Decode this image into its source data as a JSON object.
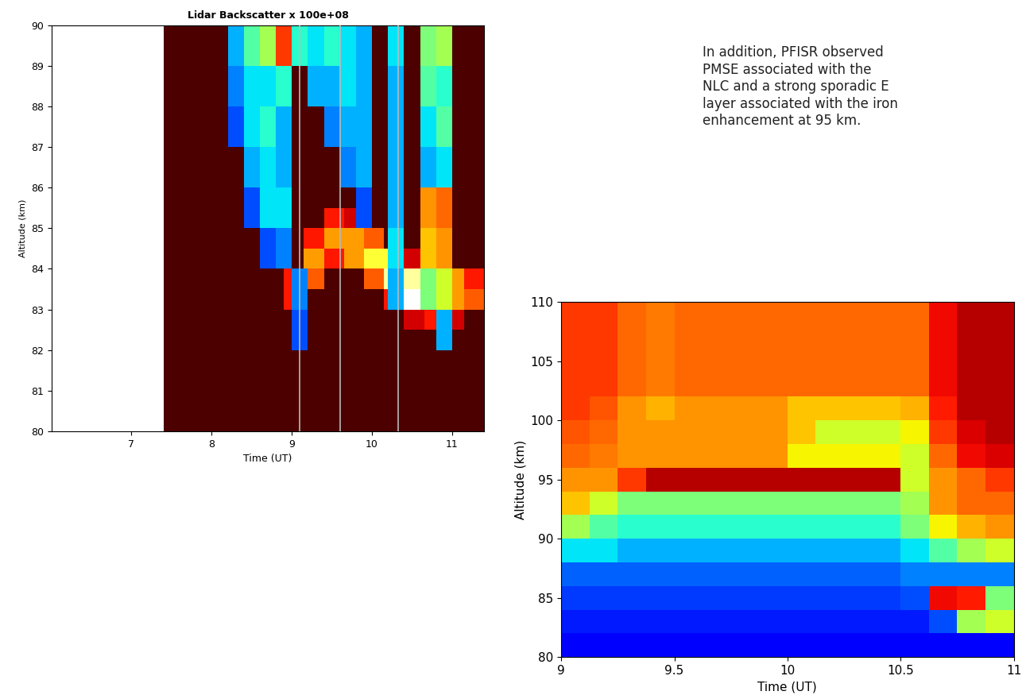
{
  "chart_data": [
    {
      "type": "heatmap",
      "title": "Lidar Backscatter x 100e+08",
      "x_label": "Time (UT)",
      "y_label": "Altitude (km)",
      "xlim": [
        6.0,
        11.4
      ],
      "ylim": [
        80,
        90
      ],
      "xticks": [
        7,
        8,
        9,
        10,
        11
      ],
      "yticks": [
        80,
        81,
        82,
        83,
        84,
        85,
        86,
        87,
        88,
        89,
        90
      ],
      "clim": [
        0,
        1
      ],
      "x_edges": [
        7.4,
        7.65,
        7.9,
        8.15,
        8.4,
        8.65,
        8.9,
        9.15,
        9.4,
        9.65,
        9.9,
        10.15,
        10.4,
        10.65,
        10.9,
        11.15,
        11.4
      ],
      "y_edges": [
        80,
        80.5,
        81,
        81.5,
        82,
        82.5,
        83,
        83.5,
        84,
        84.5,
        85,
        85.5,
        86,
        86.5,
        87,
        87.5,
        88,
        88.5,
        89,
        89.5,
        90
      ],
      "cells": [
        [
          0.1,
          0.1,
          0.1,
          0.1,
          0.1,
          0.1,
          0.1,
          0.1,
          0.1,
          0.1,
          0.1,
          0.1,
          0.1,
          0.1,
          0.1,
          0.1
        ],
        [
          0.1,
          0.1,
          0.1,
          0.1,
          0.1,
          0.1,
          0.1,
          0.1,
          0.1,
          0.1,
          0.1,
          0.1,
          0.1,
          0.1,
          0.1,
          0.1
        ],
        [
          0.1,
          0.1,
          0.1,
          0.1,
          0.1,
          0.1,
          0.1,
          0.1,
          0.1,
          0.1,
          0.1,
          0.1,
          0.1,
          0.1,
          0.1,
          0.1
        ],
        [
          0.1,
          0.1,
          0.1,
          0.1,
          0.1,
          0.1,
          0.1,
          0.1,
          0.1,
          0.1,
          0.1,
          0.1,
          0.1,
          0.1,
          0.1,
          0.1
        ],
        [
          0.1,
          0.1,
          0.1,
          0.1,
          0.1,
          0.1,
          0.1,
          0.1,
          0.1,
          0.1,
          0.1,
          0.1,
          0.1,
          0.1,
          0.1,
          0.1
        ],
        [
          0.1,
          0.1,
          0.1,
          0.1,
          0.1,
          0.1,
          0.1,
          0.1,
          0.1,
          0.1,
          0.1,
          0.1,
          0.3,
          0.4,
          0.3,
          0.1
        ],
        [
          0.1,
          0.1,
          0.1,
          0.1,
          0.1,
          0.1,
          0.4,
          0.1,
          0.1,
          0.1,
          0.1,
          0.4,
          1.0,
          0.9,
          0.6,
          0.5
        ],
        [
          0.1,
          0.1,
          0.1,
          0.1,
          0.1,
          0.1,
          0.4,
          0.5,
          0.1,
          0.1,
          0.5,
          0.9,
          0.9,
          0.8,
          0.6,
          0.4
        ],
        [
          0.1,
          0.1,
          0.1,
          0.1,
          0.1,
          0.1,
          0.1,
          0.6,
          0.4,
          0.6,
          0.8,
          0.8,
          0.3,
          0.1,
          0.1,
          0.1
        ],
        [
          0.1,
          0.1,
          0.1,
          0.1,
          0.1,
          0.1,
          0.1,
          0.4,
          0.6,
          0.6,
          0.5,
          0.1,
          0.1,
          0.1,
          0.1,
          0.1
        ],
        [
          0.1,
          0.1,
          0.1,
          0.1,
          0.1,
          0.1,
          0.1,
          0.1,
          0.4,
          0.3,
          0.1,
          0.1,
          0.1,
          0.1,
          0.1,
          0.1
        ],
        [
          0.1,
          0.1,
          0.1,
          0.1,
          0.1,
          0.1,
          0.1,
          0.1,
          0.1,
          0.1,
          0.1,
          0.1,
          0.1,
          0.1,
          0.1,
          0.1
        ],
        [
          0.1,
          0.1,
          0.1,
          0.1,
          0.1,
          0.1,
          0.1,
          0.1,
          0.1,
          0.1,
          0.1,
          0.1,
          0.1,
          0.1,
          0.1,
          0.1
        ],
        [
          0.1,
          0.1,
          0.1,
          0.1,
          0.1,
          0.1,
          0.1,
          0.1,
          0.1,
          0.1,
          0.1,
          0.1,
          0.1,
          0.1,
          0.1,
          0.1
        ],
        [
          0.1,
          0.1,
          0.1,
          0.1,
          0.1,
          0.1,
          0.1,
          0.1,
          0.1,
          0.1,
          0.1,
          0.1,
          0.1,
          0.1,
          0.1,
          0.1
        ],
        [
          0.1,
          0.1,
          0.1,
          0.1,
          0.1,
          0.1,
          0.1,
          0.1,
          0.1,
          0.1,
          0.1,
          0.1,
          0.1,
          0.1,
          0.1,
          0.1
        ],
        [
          0.1,
          0.1,
          0.1,
          0.1,
          0.1,
          0.1,
          0.1,
          0.1,
          0.1,
          0.1,
          0.1,
          0.1,
          0.1,
          0.1,
          0.1,
          0.1
        ],
        [
          0.1,
          0.1,
          0.1,
          0.1,
          0.1,
          0.1,
          0.1,
          0.1,
          0.1,
          0.1,
          0.1,
          0.1,
          0.1,
          0.1,
          0.1,
          0.1
        ],
        [
          0.1,
          0.1,
          0.1,
          0.1,
          0.1,
          0.1,
          0.1,
          0.1,
          0.1,
          0.1,
          0.1,
          0.1,
          0.1,
          0.1,
          0.1,
          0.1
        ],
        [
          0.1,
          0.1,
          0.1,
          0.1,
          0.1,
          0.1,
          0.1,
          0.1,
          0.1,
          0.1,
          0.1,
          0.1,
          0.1,
          0.1,
          0.1,
          0.1
        ]
      ],
      "overlay": {
        "x_edges": [
          8.2,
          8.4,
          8.6,
          8.8,
          9.0,
          9.2,
          9.4,
          9.6,
          9.8,
          10.0,
          10.2,
          10.4,
          10.6,
          10.8,
          11.0
        ],
        "y_edges": [
          82,
          83,
          84,
          85,
          86,
          87,
          88,
          89,
          90
        ],
        "clim": [
          0,
          1
        ],
        "cells": [
          [
            null,
            null,
            null,
            null,
            0.2,
            null,
            null,
            null,
            null,
            null,
            null,
            null,
            null,
            0.3
          ],
          [
            null,
            null,
            null,
            null,
            0.25,
            null,
            null,
            null,
            null,
            null,
            0.3,
            null,
            0.5,
            0.6
          ],
          [
            null,
            null,
            0.2,
            0.25,
            null,
            null,
            null,
            null,
            null,
            null,
            0.35,
            null,
            0.7,
            0.75
          ],
          [
            null,
            0.2,
            0.35,
            0.35,
            null,
            null,
            null,
            null,
            0.2,
            null,
            0.3,
            null,
            0.75,
            0.8
          ],
          [
            null,
            0.3,
            0.35,
            0.3,
            null,
            null,
            null,
            0.25,
            0.3,
            null,
            0.3,
            null,
            0.3,
            0.35
          ],
          [
            0.2,
            0.35,
            0.4,
            0.3,
            null,
            null,
            0.25,
            0.3,
            0.3,
            null,
            0.3,
            null,
            0.35,
            0.45
          ],
          [
            0.25,
            0.35,
            0.35,
            0.4,
            null,
            0.3,
            0.3,
            0.35,
            0.3,
            null,
            0.3,
            null,
            0.45,
            0.4
          ],
          [
            0.3,
            0.45,
            0.55,
            0.85,
            0.4,
            0.35,
            0.4,
            0.35,
            0.3,
            null,
            0.35,
            null,
            0.5,
            0.55
          ]
        ]
      },
      "marker_times": [
        9.1,
        9.6,
        10.33
      ]
    },
    {
      "type": "heatmap",
      "x_label": "Time (UT)",
      "y_label": "Altitude (km)",
      "xlim": [
        9,
        11
      ],
      "ylim": [
        80,
        110
      ],
      "xticks": [
        9,
        9.5,
        10,
        10.5,
        11
      ],
      "yticks": [
        80,
        85,
        90,
        95,
        100,
        105,
        110
      ],
      "clim": [
        0,
        1
      ],
      "annotation": "In addition, PFISR observed\nPMSE associated with the\nNLC and a strong sporadic E\nlayer associated with the iron\nenhancement at 95 km.",
      "x_edges": [
        9.0,
        9.125,
        9.25,
        9.375,
        9.5,
        9.625,
        9.75,
        9.875,
        10.0,
        10.125,
        10.25,
        10.375,
        10.5,
        10.625,
        10.75,
        10.875,
        11.0
      ],
      "y_edges": [
        80,
        82,
        84,
        86,
        88,
        90,
        92,
        94,
        96,
        98,
        100,
        102,
        104,
        106,
        108,
        110
      ],
      "cells": [
        [
          0.12,
          0.12,
          0.12,
          0.12,
          0.12,
          0.12,
          0.12,
          0.12,
          0.12,
          0.12,
          0.12,
          0.12,
          0.12,
          0.12,
          0.12,
          0.12
        ],
        [
          0.15,
          0.15,
          0.15,
          0.15,
          0.15,
          0.15,
          0.15,
          0.15,
          0.15,
          0.15,
          0.15,
          0.15,
          0.15,
          0.2,
          0.55,
          0.6
        ],
        [
          0.18,
          0.18,
          0.18,
          0.18,
          0.18,
          0.18,
          0.18,
          0.18,
          0.18,
          0.18,
          0.18,
          0.18,
          0.2,
          0.9,
          0.88,
          0.5
        ],
        [
          0.22,
          0.22,
          0.22,
          0.22,
          0.22,
          0.22,
          0.22,
          0.22,
          0.22,
          0.22,
          0.22,
          0.22,
          0.25,
          0.25,
          0.25,
          0.25
        ],
        [
          0.35,
          0.35,
          0.3,
          0.3,
          0.3,
          0.3,
          0.3,
          0.3,
          0.3,
          0.3,
          0.3,
          0.3,
          0.35,
          0.45,
          0.55,
          0.6
        ],
        [
          0.55,
          0.45,
          0.4,
          0.4,
          0.4,
          0.4,
          0.4,
          0.4,
          0.4,
          0.4,
          0.4,
          0.4,
          0.5,
          0.65,
          0.72,
          0.75
        ],
        [
          0.7,
          0.6,
          0.5,
          0.5,
          0.5,
          0.5,
          0.5,
          0.5,
          0.5,
          0.5,
          0.5,
          0.5,
          0.55,
          0.75,
          0.8,
          0.8
        ],
        [
          0.75,
          0.75,
          0.85,
          0.95,
          0.95,
          0.95,
          0.95,
          0.95,
          0.95,
          0.95,
          0.95,
          0.95,
          0.6,
          0.75,
          0.8,
          0.85
        ],
        [
          0.8,
          0.78,
          0.75,
          0.75,
          0.75,
          0.75,
          0.75,
          0.75,
          0.65,
          0.65,
          0.65,
          0.65,
          0.6,
          0.8,
          0.9,
          0.92
        ],
        [
          0.82,
          0.8,
          0.75,
          0.75,
          0.75,
          0.75,
          0.75,
          0.75,
          0.7,
          0.6,
          0.6,
          0.6,
          0.65,
          0.85,
          0.92,
          0.95
        ],
        [
          0.85,
          0.82,
          0.75,
          0.72,
          0.75,
          0.75,
          0.75,
          0.75,
          0.7,
          0.7,
          0.7,
          0.7,
          0.72,
          0.88,
          0.95,
          0.95
        ],
        [
          0.85,
          0.85,
          0.8,
          0.78,
          0.8,
          0.8,
          0.8,
          0.8,
          0.8,
          0.8,
          0.8,
          0.8,
          0.8,
          0.9,
          0.95,
          0.95
        ],
        [
          0.85,
          0.85,
          0.8,
          0.78,
          0.8,
          0.8,
          0.8,
          0.8,
          0.8,
          0.8,
          0.8,
          0.8,
          0.8,
          0.9,
          0.95,
          0.95
        ],
        [
          0.85,
          0.85,
          0.8,
          0.78,
          0.8,
          0.8,
          0.8,
          0.8,
          0.8,
          0.8,
          0.8,
          0.8,
          0.8,
          0.9,
          0.95,
          0.95
        ],
        [
          0.85,
          0.85,
          0.8,
          0.78,
          0.8,
          0.8,
          0.8,
          0.8,
          0.8,
          0.8,
          0.8,
          0.8,
          0.8,
          0.9,
          0.95,
          0.95
        ]
      ]
    }
  ]
}
